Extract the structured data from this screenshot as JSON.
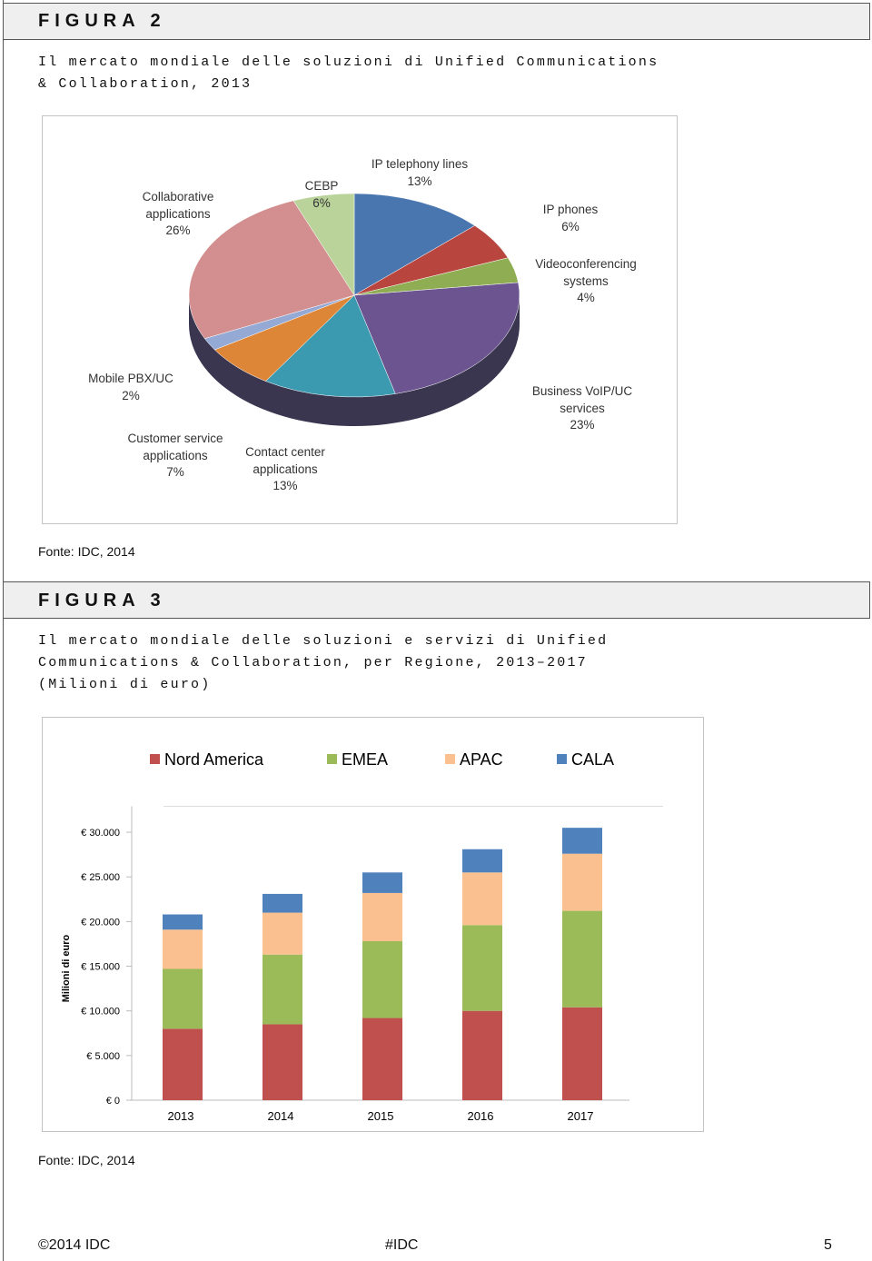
{
  "figures": [
    {
      "label": "FIGURA 2",
      "title": "Il mercato mondiale delle soluzioni di Unified Communications & Collaboration, 2013",
      "source": "Fonte: IDC, 2014"
    },
    {
      "label": "FIGURA 3",
      "title": "Il mercato mondiale delle soluzioni e servizi di Unified Communications & Collaboration, per Regione, 2013–2017",
      "subtitle": "(Milioni di euro)",
      "source": "Fonte: IDC, 2014"
    }
  ],
  "chart_data": [
    {
      "type": "pie",
      "categories": [
        "IP telephony lines",
        "IP phones",
        "Videoconferencing systems",
        "Business VoIP/UC services",
        "Contact center applications",
        "Customer service applications",
        "Mobile PBX/UC",
        "Collaborative applications",
        "CEBP"
      ],
      "values": [
        13,
        6,
        4,
        23,
        13,
        7,
        2,
        26,
        6
      ],
      "value_labels": [
        "13%",
        "6%",
        "4%",
        "23%",
        "13%",
        "7%",
        "2%",
        "26%",
        "6%"
      ],
      "colors": [
        "#4a76b0",
        "#b8463f",
        "#8fad52",
        "#6b5490",
        "#3c9ab0",
        "#de8638",
        "#94a9d4",
        "#d38f8f",
        "#b9d39a"
      ]
    },
    {
      "type": "stacked-bar",
      "y_label": "Milioni di euro",
      "categories": [
        "2013",
        "2014",
        "2015",
        "2016",
        "2017"
      ],
      "series": [
        {
          "name": "Nord America",
          "color": "#c0504d",
          "values": [
            8000,
            8500,
            9200,
            10000,
            10400
          ]
        },
        {
          "name": "EMEA",
          "color": "#9bbb59",
          "values": [
            6700,
            7800,
            8600,
            9600,
            10800
          ]
        },
        {
          "name": "APAC",
          "color": "#fac090",
          "values": [
            4400,
            4700,
            5400,
            5900,
            6400
          ]
        },
        {
          "name": "CALA",
          "color": "#4f81bd",
          "values": [
            1700,
            2100,
            2300,
            2600,
            2900
          ]
        }
      ],
      "ylim": [
        0,
        32500
      ],
      "yticks": [
        {
          "value": 0,
          "label": "€ 0"
        },
        {
          "value": 5000,
          "label": "€ 5.000"
        },
        {
          "value": 10000,
          "label": "€ 10.000"
        },
        {
          "value": 15000,
          "label": "€ 15.000"
        },
        {
          "value": 20000,
          "label": "€ 20.000"
        },
        {
          "value": 25000,
          "label": "€ 25.000"
        },
        {
          "value": 30000,
          "label": "€ 30.000"
        }
      ],
      "grid": false,
      "legend": "top"
    }
  ],
  "footer": {
    "left": "©2014 IDC",
    "center": "#IDC",
    "right": "5"
  }
}
